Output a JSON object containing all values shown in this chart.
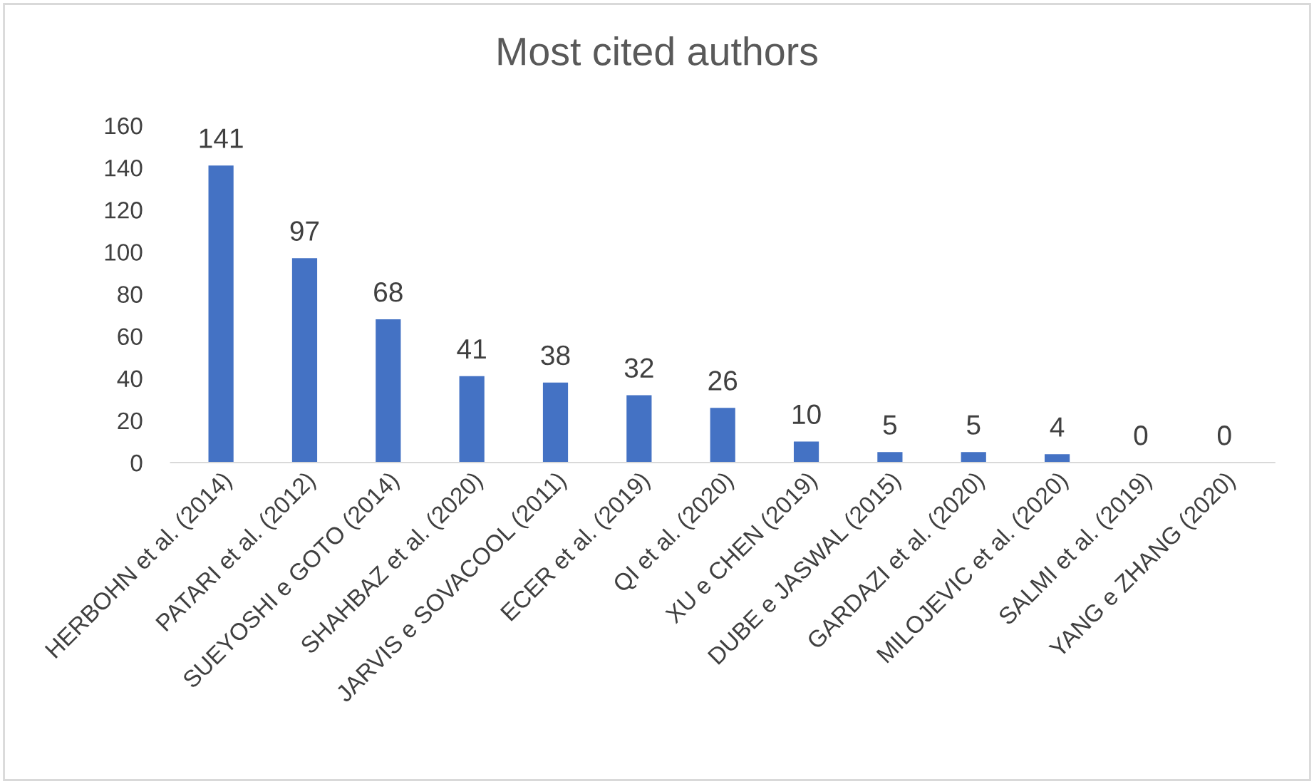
{
  "chart_data": {
    "type": "bar",
    "title": "Most cited authors",
    "categories": [
      "HERBOHN et al. (2014)",
      "PATARI et al. (2012)",
      "SUEYOSHI e GOTO (2014)",
      "SHAHBAZ et al. (2020)",
      "JARVIS e SOVACOOL (2011)",
      "ECER et al. (2019)",
      "QI et al. (2020)",
      "XU e CHEN (2019)",
      "DUBE e JASWAL (2015)",
      "GARDAZI et al. (2020)",
      "MILOJEVIC et al. (2020)",
      "SALMI et al. (2019)",
      "YANG e ZHANG (2020)"
    ],
    "values": [
      141,
      97,
      68,
      41,
      38,
      32,
      26,
      10,
      5,
      5,
      4,
      0,
      0
    ],
    "color": "#4472c4",
    "ylim": [
      0,
      160
    ],
    "yticks": [
      0,
      20,
      40,
      60,
      80,
      100,
      120,
      140,
      160
    ],
    "data_labels": true,
    "grid": false,
    "legend": false
  }
}
